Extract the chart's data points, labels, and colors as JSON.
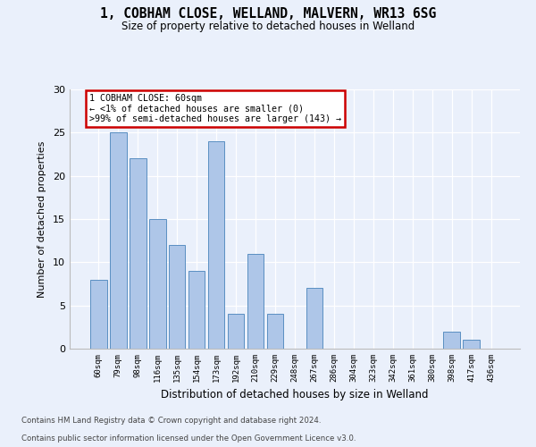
{
  "title_line1": "1, COBHAM CLOSE, WELLAND, MALVERN, WR13 6SG",
  "title_line2": "Size of property relative to detached houses in Welland",
  "xlabel": "Distribution of detached houses by size in Welland",
  "ylabel": "Number of detached properties",
  "categories": [
    "60sqm",
    "79sqm",
    "98sqm",
    "116sqm",
    "135sqm",
    "154sqm",
    "173sqm",
    "192sqm",
    "210sqm",
    "229sqm",
    "248sqm",
    "267sqm",
    "286sqm",
    "304sqm",
    "323sqm",
    "342sqm",
    "361sqm",
    "380sqm",
    "398sqm",
    "417sqm",
    "436sqm"
  ],
  "values": [
    8,
    25,
    22,
    15,
    12,
    9,
    24,
    4,
    11,
    4,
    0,
    7,
    0,
    0,
    0,
    0,
    0,
    0,
    2,
    1,
    0
  ],
  "bar_color": "#aec6e8",
  "bar_edge_color": "#5a8fc2",
  "annotation_text": "1 COBHAM CLOSE: 60sqm\n← <1% of detached houses are smaller (0)\n>99% of semi-detached houses are larger (143) →",
  "annotation_box_color": "#ffffff",
  "annotation_box_edge_color": "#cc0000",
  "ylim": [
    0,
    30
  ],
  "yticks": [
    0,
    5,
    10,
    15,
    20,
    25,
    30
  ],
  "background_color": "#eaf0fb",
  "grid_color": "#ffffff",
  "footer_line1": "Contains HM Land Registry data © Crown copyright and database right 2024.",
  "footer_line2": "Contains public sector information licensed under the Open Government Licence v3.0."
}
